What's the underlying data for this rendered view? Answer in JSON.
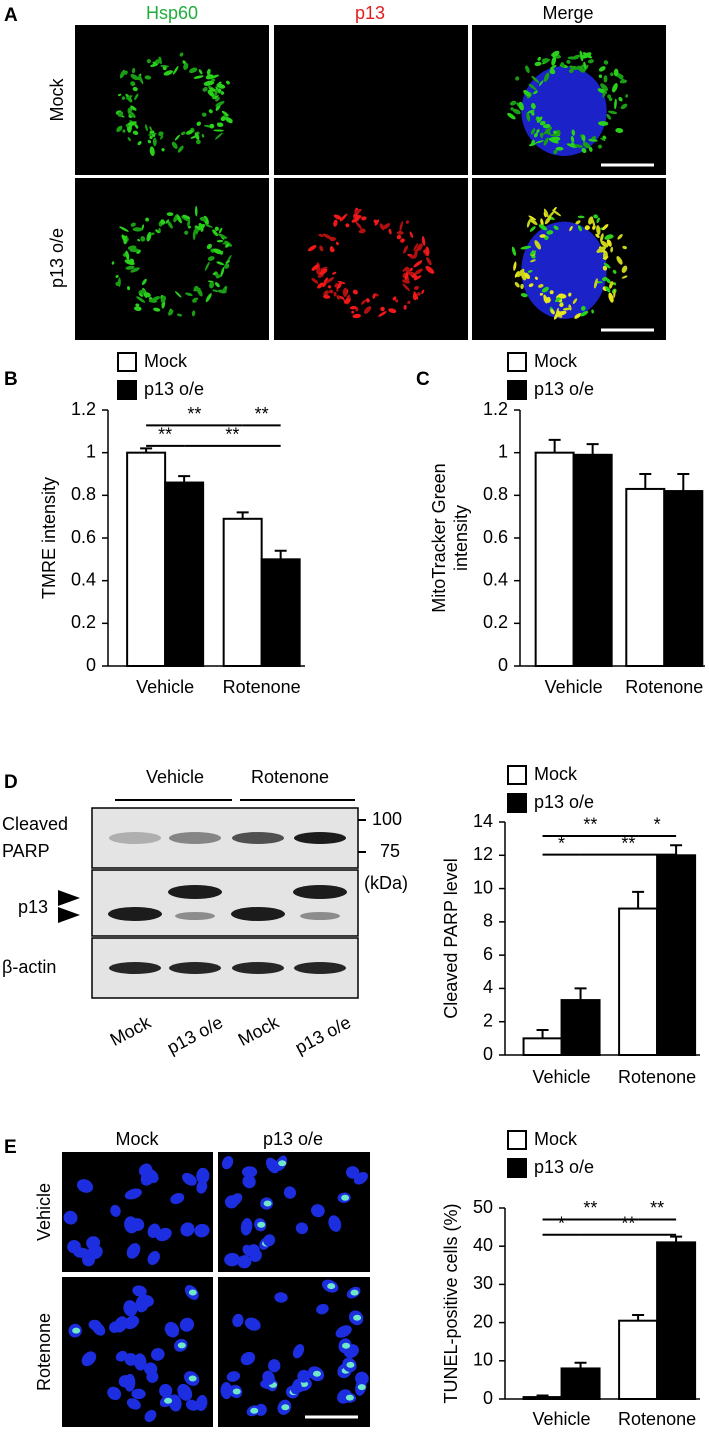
{
  "figure": {
    "panel_labels": [
      "A",
      "B",
      "C",
      "D",
      "E"
    ],
    "panel_a": {
      "columns": [
        "Hsp60",
        "p13",
        "Merge"
      ],
      "rows": [
        "Mock",
        "p13 o/e"
      ]
    },
    "panel_d_blot": {
      "groups": [
        "Vehicle",
        "Rotenone"
      ],
      "row_labels": [
        "Cleaved",
        "PARP",
        "p13",
        "β-actin"
      ],
      "markers": [
        100,
        75
      ],
      "marker_unit": "(kDa)",
      "lanes": [
        "Mock",
        "p13 o/e",
        "Mock",
        "p13 o/e"
      ]
    },
    "panel_e": {
      "columns": [
        "Mock",
        "p13 o/e"
      ],
      "rows": [
        "Vehicle",
        "Rotenone"
      ]
    }
  },
  "chart_data": [
    {
      "type": "bar",
      "y_label": [
        "TMRE intensity"
      ],
      "categories": [
        "Vehicle",
        "Rotenone"
      ],
      "series": [
        {
          "name": "Mock",
          "color": "#ffffff",
          "values": [
            1.0,
            0.69
          ],
          "errors": [
            0.02,
            0.03
          ]
        },
        {
          "name": "p13 o/e",
          "color": "#000000",
          "values": [
            0.86,
            0.5
          ],
          "errors": [
            0.03,
            0.04
          ]
        }
      ],
      "ylim": [
        0,
        1.2
      ],
      "yticks": [
        0,
        0.2,
        0.4,
        0.6,
        0.8,
        1,
        1.2
      ],
      "significance": [
        "**",
        "**",
        "**",
        "**"
      ]
    },
    {
      "type": "bar",
      "y_label": [
        "MitoTracker Green",
        "intensity"
      ],
      "categories": [
        "Vehicle",
        "Rotenone"
      ],
      "series": [
        {
          "name": "Mock",
          "color": "#ffffff",
          "values": [
            1.0,
            0.83
          ],
          "errors": [
            0.06,
            0.07
          ]
        },
        {
          "name": "p13 o/e",
          "color": "#000000",
          "values": [
            0.99,
            0.82
          ],
          "errors": [
            0.05,
            0.08
          ]
        }
      ],
      "ylim": [
        0,
        1.2
      ],
      "yticks": [
        0,
        0.2,
        0.4,
        0.6,
        0.8,
        1,
        1.2
      ]
    },
    {
      "type": "bar",
      "y_label": [
        "Cleaved PARP level"
      ],
      "categories": [
        "Vehicle",
        "Rotenone"
      ],
      "series": [
        {
          "name": "Mock",
          "color": "#ffffff",
          "values": [
            1.0,
            8.8
          ],
          "errors": [
            0.5,
            1.0
          ]
        },
        {
          "name": "p13 o/e",
          "color": "#000000",
          "values": [
            3.3,
            12.0
          ],
          "errors": [
            0.7,
            0.6
          ]
        }
      ],
      "ylim": [
        0,
        14
      ],
      "yticks": [
        0,
        2,
        4,
        6,
        8,
        10,
        12,
        14
      ],
      "significance": [
        "**",
        "*",
        "*",
        "**"
      ]
    },
    {
      "type": "bar",
      "y_label": [
        "TUNEL-positive cells (%)"
      ],
      "categories": [
        "Vehicle",
        "Rotenone"
      ],
      "series": [
        {
          "name": "Mock",
          "color": "#ffffff",
          "values": [
            0.5,
            20.5
          ],
          "errors": [
            0.4,
            1.5
          ]
        },
        {
          "name": "p13 o/e",
          "color": "#000000",
          "values": [
            8.0,
            41
          ],
          "errors": [
            1.5,
            1.5
          ]
        }
      ],
      "ylim": [
        0,
        50
      ],
      "yticks": [
        0,
        10,
        20,
        30,
        40,
        50
      ],
      "significance": [
        "**",
        "**",
        "*",
        "**"
      ]
    }
  ]
}
